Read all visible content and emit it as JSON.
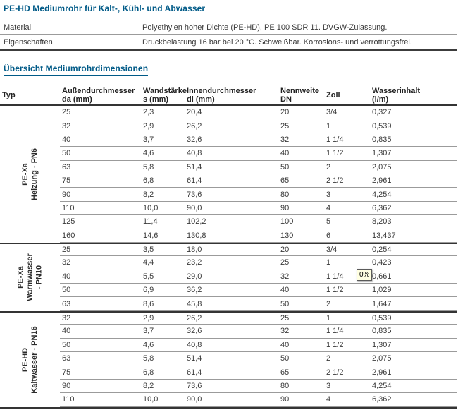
{
  "doc": {
    "title": "PE-HD Mediumrohr für Kalt-, Kühl- und Abwasser",
    "section_title": "Übersicht Mediumrohrdimensionen",
    "accent_color": "#005a87",
    "heavy_line_color": "#343434",
    "light_line_color": "#9b9b9b"
  },
  "spec": {
    "rows": [
      {
        "label": "Material",
        "value": "Polyethylen hoher Dichte (PE-HD), PE 100 SDR 11. DVGW-Zulassung."
      },
      {
        "label": "Eigenschaften",
        "value": "Druckbelastung 16 bar bei 20 °C. Schweißbar. Korrosions- und verrottungsfrei."
      }
    ]
  },
  "table": {
    "columns": [
      {
        "title": "Typ",
        "sub": ""
      },
      {
        "title": "Außendurchmesser",
        "sub": "da (mm)"
      },
      {
        "title": "Wandstärke",
        "sub": "s (mm)"
      },
      {
        "title": "Innendurchmesser",
        "sub": "di (mm)"
      },
      {
        "title": "Nennweite",
        "sub": "DN"
      },
      {
        "title": "Zoll",
        "sub": ""
      },
      {
        "title": "Wasserinhalt",
        "sub": "(l/m)"
      }
    ],
    "groups": [
      {
        "label_lines": [
          "PE-Xa",
          "Heizung - PN6"
        ],
        "rows": [
          [
            "25",
            "2,3",
            "20,4",
            "20",
            "3/4",
            "0,327"
          ],
          [
            "32",
            "2,9",
            "26,2",
            "25",
            "1",
            "0,539"
          ],
          [
            "40",
            "3,7",
            "32,6",
            "32",
            "1 1/4",
            "0,835"
          ],
          [
            "50",
            "4,6",
            "40,8",
            "40",
            "1 1/2",
            "1,307"
          ],
          [
            "63",
            "5,8",
            "51,4",
            "50",
            "2",
            "2,075"
          ],
          [
            "75",
            "6,8",
            "61,4",
            "65",
            "2 1/2",
            "2,961"
          ],
          [
            "90",
            "8,2",
            "73,6",
            "80",
            "3",
            "4,254"
          ],
          [
            "110",
            "10,0",
            "90,0",
            "90",
            "4",
            "6,362"
          ],
          [
            "125",
            "11,4",
            "102,2",
            "100",
            "5",
            "8,203"
          ],
          [
            "160",
            "14,6",
            "130,8",
            "130",
            "6",
            "13,437"
          ]
        ]
      },
      {
        "label_lines": [
          "PE-Xa",
          "Warmwasser",
          "- PN10"
        ],
        "rows": [
          [
            "25",
            "3,5",
            "18,0",
            "20",
            "3/4",
            "0,254"
          ],
          [
            "32",
            "4,4",
            "23,2",
            "25",
            "1",
            "0,423"
          ],
          [
            "40",
            "5,5",
            "29,0",
            "32",
            "1 1/4",
            "0,661"
          ],
          [
            "50",
            "6,9",
            "36,2",
            "40",
            "1 1/2",
            "1,029"
          ],
          [
            "63",
            "8,6",
            "45,8",
            "50",
            "2",
            "1,647"
          ]
        ]
      },
      {
        "label_lines": [
          "PE-HD",
          "Kaltwasser - PN16"
        ],
        "rows": [
          [
            "32",
            "2,9",
            "26,2",
            "25",
            "1",
            "0,539"
          ],
          [
            "40",
            "3,7",
            "32,6",
            "32",
            "1 1/4",
            "0,835"
          ],
          [
            "50",
            "4,6",
            "40,8",
            "40",
            "1 1/2",
            "1,307"
          ],
          [
            "63",
            "5,8",
            "51,4",
            "50",
            "2",
            "2,075"
          ],
          [
            "75",
            "6,8",
            "61,4",
            "65",
            "2 1/2",
            "2,961"
          ],
          [
            "90",
            "8,2",
            "73,6",
            "80",
            "3",
            "4,254"
          ],
          [
            "110",
            "10,0",
            "90,0",
            "90",
            "4",
            "6,362"
          ]
        ]
      }
    ]
  },
  "tooltip": {
    "text": "0%"
  }
}
